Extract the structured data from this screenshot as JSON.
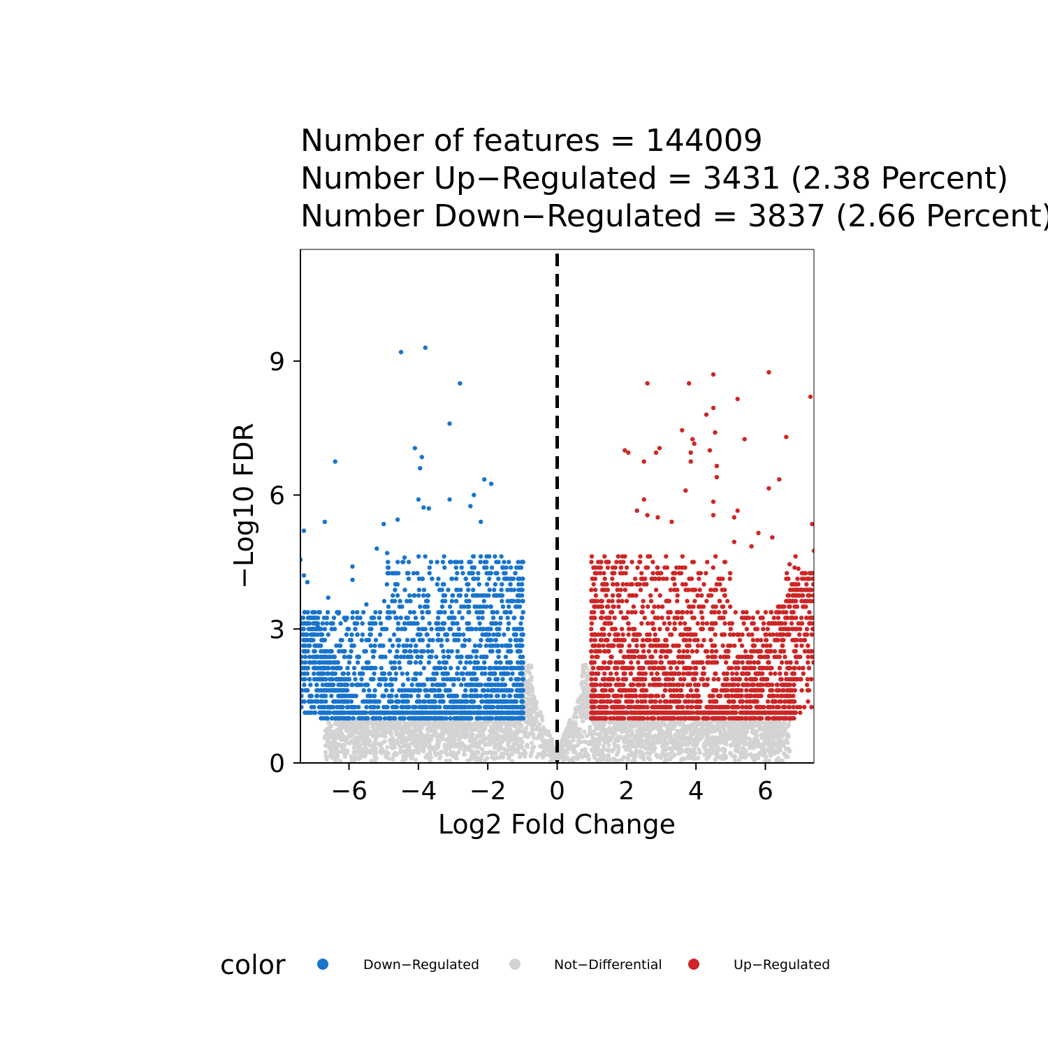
{
  "chart_data": {
    "type": "scatter",
    "title_lines": [
      "Number of features = 144009",
      "Number Up−Regulated = 3431 (2.38 Percent)",
      "Number Down−Regulated = 3837 (2.66 Percent)"
    ],
    "xlabel": "Log2 Fold Change",
    "ylabel": "−Log10 FDR",
    "xlim": [
      -7.4,
      7.4
    ],
    "ylim": [
      0,
      11.5
    ],
    "x_ticks": [
      -6,
      -4,
      -2,
      0,
      2,
      4,
      6
    ],
    "x_tick_labels": [
      "−6",
      "−4",
      "−2",
      "0",
      "2",
      "4",
      "6"
    ],
    "y_ticks": [
      0,
      3,
      6,
      9
    ],
    "y_tick_labels": [
      "0",
      "3",
      "6",
      "9"
    ],
    "vline_x": 0,
    "grid": false,
    "legend": {
      "title": "color",
      "position": "bottom",
      "entries": [
        {
          "label": "Down−Regulated",
          "color": "#1874CD"
        },
        {
          "label": "Not−Differential",
          "color": "#D3D3D3"
        },
        {
          "label": "Up−Regulated",
          "color": "#CD2626"
        }
      ]
    },
    "series": [
      {
        "name": "Down−Regulated",
        "color": "#1874CD",
        "points": [
          [
            -3.8,
            9.3
          ],
          [
            -4.5,
            9.2
          ],
          [
            -2.8,
            8.5
          ],
          [
            -3.1,
            7.6
          ],
          [
            -4.1,
            7.05
          ],
          [
            -3.9,
            6.85
          ],
          [
            -3.95,
            6.6
          ],
          [
            -6.4,
            6.75
          ],
          [
            -2.1,
            6.35
          ],
          [
            -1.9,
            6.25
          ],
          [
            -2.4,
            6.0
          ],
          [
            -2.5,
            5.75
          ],
          [
            -3.1,
            5.9
          ],
          [
            -4.0,
            5.9
          ],
          [
            -3.7,
            5.7
          ],
          [
            -3.85,
            5.72
          ],
          [
            -6.7,
            5.4
          ],
          [
            -4.6,
            5.45
          ],
          [
            -5.0,
            5.35
          ],
          [
            -2.2,
            5.4
          ],
          [
            -7.3,
            5.2
          ],
          [
            -7.4,
            4.55
          ],
          [
            -7.3,
            4.2
          ],
          [
            -7.2,
            4.05
          ],
          [
            -6.6,
            3.7
          ],
          [
            -5.9,
            4.4
          ],
          [
            -5.9,
            4.1
          ],
          [
            -5.2,
            4.8
          ],
          [
            -4.9,
            4.7
          ],
          [
            -4.4,
            4.6
          ],
          [
            -5.5,
            3.55
          ],
          [
            -6.1,
            3.2
          ],
          [
            -6.3,
            3.35
          ],
          [
            -6.5,
            3.0
          ],
          [
            -6.9,
            3.05
          ]
        ]
      },
      {
        "name": "Up−Regulated",
        "color": "#CD2626",
        "points": [
          [
            6.1,
            8.75
          ],
          [
            4.5,
            8.7
          ],
          [
            2.6,
            8.5
          ],
          [
            3.8,
            8.5
          ],
          [
            7.3,
            8.2
          ],
          [
            5.2,
            8.15
          ],
          [
            4.5,
            7.95
          ],
          [
            4.3,
            7.8
          ],
          [
            3.6,
            7.45
          ],
          [
            4.55,
            7.4
          ],
          [
            3.9,
            7.25
          ],
          [
            3.95,
            7.15
          ],
          [
            5.4,
            7.25
          ],
          [
            6.6,
            7.3
          ],
          [
            1.95,
            7.0
          ],
          [
            2.05,
            6.95
          ],
          [
            2.95,
            7.05
          ],
          [
            2.85,
            6.95
          ],
          [
            3.85,
            6.95
          ],
          [
            4.4,
            7.0
          ],
          [
            3.85,
            6.75
          ],
          [
            2.5,
            6.75
          ],
          [
            4.6,
            6.65
          ],
          [
            4.6,
            6.4
          ],
          [
            6.4,
            6.35
          ],
          [
            6.1,
            6.15
          ],
          [
            3.7,
            6.1
          ],
          [
            2.5,
            5.9
          ],
          [
            4.5,
            5.85
          ],
          [
            2.3,
            5.65
          ],
          [
            2.6,
            5.55
          ],
          [
            2.9,
            5.5
          ],
          [
            3.3,
            5.4
          ],
          [
            4.5,
            5.55
          ],
          [
            5.2,
            5.65
          ],
          [
            5.1,
            5.5
          ],
          [
            7.35,
            5.35
          ],
          [
            7.4,
            4.75
          ],
          [
            6.2,
            5.05
          ],
          [
            5.8,
            5.15
          ],
          [
            5.1,
            4.95
          ],
          [
            5.6,
            4.85
          ],
          [
            6.7,
            4.45
          ],
          [
            6.95,
            4.35
          ]
        ]
      }
    ]
  }
}
